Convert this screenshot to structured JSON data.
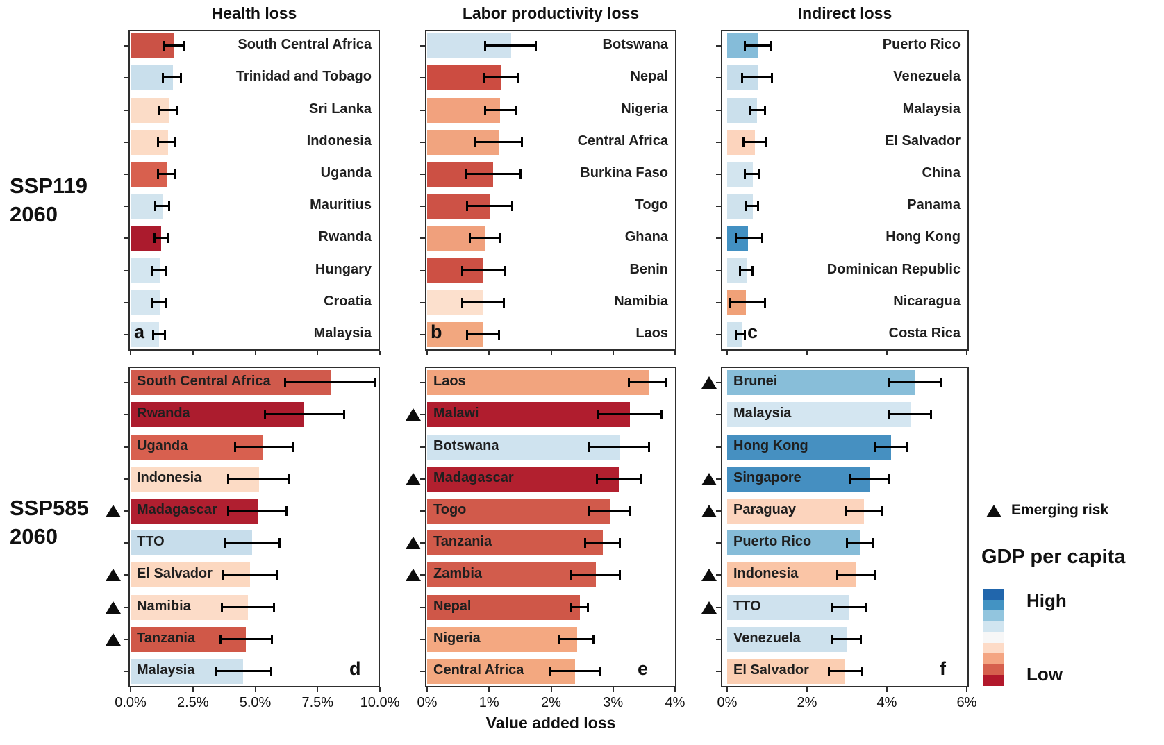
{
  "figure": {
    "column_titles": [
      "Health loss",
      "Labor productivity loss",
      "Indirect loss"
    ],
    "row_labels": [
      {
        "line1": "SSP119",
        "line2": "2060"
      },
      {
        "line1": "SSP585",
        "line2": "2060"
      }
    ],
    "x_axis_title": "Value added loss",
    "legend": {
      "emerging_risk_label": "Emerging risk",
      "gdp_title": "GDP per capita",
      "high_label": "High",
      "low_label": "Low",
      "gradient": [
        "#2166ac",
        "#4393c3",
        "#92c5de",
        "#d1e5f0",
        "#f7f7f7",
        "#fddbc7",
        "#f4a582",
        "#d6604d",
        "#b2182b"
      ]
    }
  },
  "chart_data": [
    {
      "id": "a",
      "type": "bar",
      "row": 0,
      "col": 0,
      "scenario": "SSP119 2060",
      "measure": "Health loss",
      "xlim": [
        0,
        10
      ],
      "unit": "%",
      "label_position": "right",
      "show_tick_labels": false,
      "ticks": [
        {
          "value": 0,
          "label": "0.0%"
        },
        {
          "value": 2.5,
          "label": "2.5%"
        },
        {
          "value": 5,
          "label": "5.0%"
        },
        {
          "value": 7.5,
          "label": "7.5%"
        },
        {
          "value": 10,
          "label": "10.0%"
        }
      ],
      "bars": [
        {
          "country": "South Central Africa",
          "value": 1.76,
          "lo": 1.33,
          "hi": 2.17,
          "color": "#cb5246",
          "emerging_risk": false
        },
        {
          "country": "Trinidad and Tobago",
          "value": 1.7,
          "lo": 1.28,
          "hi": 2.03,
          "color": "#c9dfec",
          "emerging_risk": false
        },
        {
          "country": "Sri Lanka",
          "value": 1.54,
          "lo": 1.15,
          "hi": 1.87,
          "color": "#fbdcc7",
          "emerging_risk": false
        },
        {
          "country": "Indonesia",
          "value": 1.5,
          "lo": 1.09,
          "hi": 1.8,
          "color": "#fcdbc5",
          "emerging_risk": false
        },
        {
          "country": "Uganda",
          "value": 1.47,
          "lo": 1.09,
          "hi": 1.79,
          "color": "#d8604e",
          "emerging_risk": false
        },
        {
          "country": "Mauritius",
          "value": 1.31,
          "lo": 0.98,
          "hi": 1.56,
          "color": "#d2e4ee",
          "emerging_risk": false
        },
        {
          "country": "Rwanda",
          "value": 1.23,
          "lo": 0.94,
          "hi": 1.51,
          "color": "#ab1b2d",
          "emerging_risk": false
        },
        {
          "country": "Hungary",
          "value": 1.18,
          "lo": 0.87,
          "hi": 1.43,
          "color": "#d4e6f0",
          "emerging_risk": false
        },
        {
          "country": "Croatia",
          "value": 1.16,
          "lo": 0.87,
          "hi": 1.45,
          "color": "#d5e6f0",
          "emerging_risk": false
        },
        {
          "country": "Malaysia",
          "value": 1.15,
          "lo": 0.89,
          "hi": 1.39,
          "color": "#d6e7f1",
          "emerging_risk": false
        }
      ]
    },
    {
      "id": "b",
      "type": "bar",
      "row": 0,
      "col": 1,
      "scenario": "SSP119 2060",
      "measure": "Labor productivity loss",
      "xlim": [
        0,
        4
      ],
      "unit": "%",
      "label_position": "right",
      "show_tick_labels": false,
      "ticks": [
        {
          "value": 0,
          "label": "0%"
        },
        {
          "value": 1,
          "label": "1%"
        },
        {
          "value": 2,
          "label": "2%"
        },
        {
          "value": 3,
          "label": "3%"
        },
        {
          "value": 4,
          "label": "4%"
        }
      ],
      "bars": [
        {
          "country": "Botswana",
          "value": 1.36,
          "lo": 0.93,
          "hi": 1.76,
          "color": "#cfe2ee",
          "emerging_risk": false
        },
        {
          "country": "Nepal",
          "value": 1.2,
          "lo": 0.92,
          "hi": 1.48,
          "color": "#cc4c41",
          "emerging_risk": false
        },
        {
          "country": "Nigeria",
          "value": 1.18,
          "lo": 0.93,
          "hi": 1.43,
          "color": "#f2a27e",
          "emerging_risk": false
        },
        {
          "country": "Central Africa",
          "value": 1.15,
          "lo": 0.77,
          "hi": 1.53,
          "color": "#f1a47f",
          "emerging_risk": false
        },
        {
          "country": "Burkina Faso",
          "value": 1.07,
          "lo": 0.62,
          "hi": 1.51,
          "color": "#cc5044",
          "emerging_risk": false
        },
        {
          "country": "Togo",
          "value": 1.02,
          "lo": 0.64,
          "hi": 1.38,
          "color": "#cd5246",
          "emerging_risk": false
        },
        {
          "country": "Ghana",
          "value": 0.93,
          "lo": 0.68,
          "hi": 1.18,
          "color": "#f0a07c",
          "emerging_risk": false
        },
        {
          "country": "Benin",
          "value": 0.9,
          "lo": 0.56,
          "hi": 1.25,
          "color": "#cd5044",
          "emerging_risk": false
        },
        {
          "country": "Namibia",
          "value": 0.9,
          "lo": 0.56,
          "hi": 1.24,
          "color": "#fce0cd",
          "emerging_risk": false
        },
        {
          "country": "Laos",
          "value": 0.9,
          "lo": 0.64,
          "hi": 1.16,
          "color": "#f2a77f",
          "emerging_risk": false
        }
      ]
    },
    {
      "id": "c",
      "type": "bar",
      "row": 0,
      "col": 2,
      "scenario": "SSP119 2060",
      "measure": "Indirect loss",
      "xlim": [
        0,
        6
      ],
      "unit": "%",
      "label_position": "right",
      "show_tick_labels": false,
      "ticks": [
        {
          "value": 0,
          "label": "0%"
        },
        {
          "value": 2,
          "label": "2%"
        },
        {
          "value": 4,
          "label": "4%"
        },
        {
          "value": 6,
          "label": "6%"
        }
      ],
      "bars": [
        {
          "country": "Puerto Rico",
          "value": 0.78,
          "lo": 0.43,
          "hi": 1.1,
          "color": "#85bcd9",
          "emerging_risk": false
        },
        {
          "country": "Venezuela",
          "value": 0.77,
          "lo": 0.37,
          "hi": 1.13,
          "color": "#c6ddeb",
          "emerging_risk": false
        },
        {
          "country": "Malaysia",
          "value": 0.75,
          "lo": 0.55,
          "hi": 0.95,
          "color": "#cbe0ec",
          "emerging_risk": false
        },
        {
          "country": "El Salvador",
          "value": 0.69,
          "lo": 0.4,
          "hi": 0.99,
          "color": "#fcd4bd",
          "emerging_risk": false
        },
        {
          "country": "China",
          "value": 0.64,
          "lo": 0.44,
          "hi": 0.81,
          "color": "#d3e5ef",
          "emerging_risk": false
        },
        {
          "country": "Panama",
          "value": 0.64,
          "lo": 0.46,
          "hi": 0.79,
          "color": "#cfe2ed",
          "emerging_risk": false
        },
        {
          "country": "Hong Kong",
          "value": 0.53,
          "lo": 0.2,
          "hi": 0.89,
          "color": "#4290c2",
          "emerging_risk": false
        },
        {
          "country": "Dominican Republic",
          "value": 0.5,
          "lo": 0.31,
          "hi": 0.64,
          "color": "#d2e4ee",
          "emerging_risk": false
        },
        {
          "country": "Nicaragua",
          "value": 0.47,
          "lo": 0.05,
          "hi": 0.95,
          "color": "#f0a178",
          "emerging_risk": false
        },
        {
          "country": "Costa Rica",
          "value": 0.37,
          "lo": 0.21,
          "hi": 0.46,
          "color": "#cfe3ee",
          "emerging_risk": false
        }
      ]
    },
    {
      "id": "d",
      "type": "bar",
      "row": 1,
      "col": 0,
      "scenario": "SSP585 2060",
      "measure": "Health loss",
      "xlim": [
        0,
        10
      ],
      "unit": "%",
      "label_position": "inside",
      "show_tick_labels": true,
      "ticks": [
        {
          "value": 0,
          "label": "0.0%"
        },
        {
          "value": 2.5,
          "label": "2.5%"
        },
        {
          "value": 5,
          "label": "5.0%"
        },
        {
          "value": 7.5,
          "label": "7.5%"
        },
        {
          "value": 10,
          "label": "10.0%"
        }
      ],
      "bars": [
        {
          "country": "South Central Africa",
          "value": 8.02,
          "lo": 6.18,
          "hi": 9.8,
          "color": "#d05a4c",
          "emerging_risk": false
        },
        {
          "country": "Rwanda",
          "value": 6.97,
          "lo": 5.37,
          "hi": 8.58,
          "color": "#ac1c2e",
          "emerging_risk": false
        },
        {
          "country": "Uganda",
          "value": 5.32,
          "lo": 4.19,
          "hi": 6.51,
          "color": "#d8604f",
          "emerging_risk": false
        },
        {
          "country": "Indonesia",
          "value": 5.16,
          "lo": 3.91,
          "hi": 6.35,
          "color": "#fcdbc5",
          "emerging_risk": false
        },
        {
          "country": "Madagascar",
          "value": 5.13,
          "lo": 3.91,
          "hi": 6.28,
          "color": "#b01f30",
          "emerging_risk": true
        },
        {
          "country": "TTO",
          "value": 4.87,
          "lo": 3.75,
          "hi": 6.0,
          "color": "#c7ddeb",
          "emerging_risk": false
        },
        {
          "country": "El Salvador",
          "value": 4.79,
          "lo": 3.68,
          "hi": 5.91,
          "color": "#fcd8c0",
          "emerging_risk": true
        },
        {
          "country": "Namibia",
          "value": 4.7,
          "lo": 3.65,
          "hi": 5.77,
          "color": "#fcdcc8",
          "emerging_risk": true
        },
        {
          "country": "Tanzania",
          "value": 4.62,
          "lo": 3.58,
          "hi": 5.67,
          "color": "#d05848",
          "emerging_risk": true
        },
        {
          "country": "Malaysia",
          "value": 4.51,
          "lo": 3.42,
          "hi": 5.65,
          "color": "#cde1ed",
          "emerging_risk": false
        }
      ]
    },
    {
      "id": "e",
      "type": "bar",
      "row": 1,
      "col": 1,
      "scenario": "SSP585 2060",
      "measure": "Labor productivity loss",
      "xlim": [
        0,
        4
      ],
      "unit": "%",
      "label_position": "inside",
      "show_tick_labels": true,
      "ticks": [
        {
          "value": 0,
          "label": "0%"
        },
        {
          "value": 1,
          "label": "1%"
        },
        {
          "value": 2,
          "label": "2%"
        },
        {
          "value": 3,
          "label": "3%"
        },
        {
          "value": 4,
          "label": "4%"
        }
      ],
      "bars": [
        {
          "country": "Laos",
          "value": 3.59,
          "lo": 3.25,
          "hi": 3.87,
          "color": "#f2a47e",
          "emerging_risk": false
        },
        {
          "country": "Malawi",
          "value": 3.27,
          "lo": 2.76,
          "hi": 3.79,
          "color": "#b01d2e",
          "emerging_risk": true
        },
        {
          "country": "Botswana",
          "value": 3.1,
          "lo": 2.61,
          "hi": 3.59,
          "color": "#cfe3ef",
          "emerging_risk": false
        },
        {
          "country": "Madagascar",
          "value": 3.09,
          "lo": 2.73,
          "hi": 3.45,
          "color": "#b2202f",
          "emerging_risk": true
        },
        {
          "country": "Togo",
          "value": 2.95,
          "lo": 2.61,
          "hi": 3.27,
          "color": "#d15a4b",
          "emerging_risk": false
        },
        {
          "country": "Tanzania",
          "value": 2.84,
          "lo": 2.54,
          "hi": 3.12,
          "color": "#d15a4a",
          "emerging_risk": true
        },
        {
          "country": "Zambia",
          "value": 2.72,
          "lo": 2.32,
          "hi": 3.12,
          "color": "#d25c4c",
          "emerging_risk": true
        },
        {
          "country": "Nepal",
          "value": 2.46,
          "lo": 2.32,
          "hi": 2.6,
          "color": "#cf5748",
          "emerging_risk": false
        },
        {
          "country": "Nigeria",
          "value": 2.42,
          "lo": 2.13,
          "hi": 2.69,
          "color": "#f4a881",
          "emerging_risk": false
        },
        {
          "country": "Central Africa",
          "value": 2.39,
          "lo": 1.98,
          "hi": 2.8,
          "color": "#f3a880",
          "emerging_risk": false
        }
      ]
    },
    {
      "id": "f",
      "type": "bar",
      "row": 1,
      "col": 2,
      "scenario": "SSP585 2060",
      "measure": "Indirect loss",
      "xlim": [
        0,
        6
      ],
      "unit": "%",
      "label_position": "inside",
      "show_tick_labels": true,
      "ticks": [
        {
          "value": 0,
          "label": "0%"
        },
        {
          "value": 2,
          "label": "2%"
        },
        {
          "value": 4,
          "label": "4%"
        },
        {
          "value": 6,
          "label": "6%"
        }
      ],
      "bars": [
        {
          "country": "Brunei",
          "value": 4.72,
          "lo": 4.05,
          "hi": 5.35,
          "color": "#88bed9",
          "emerging_risk": true
        },
        {
          "country": "Malaysia",
          "value": 4.59,
          "lo": 4.05,
          "hi": 5.11,
          "color": "#d4e6f1",
          "emerging_risk": false
        },
        {
          "country": "Hong Kong",
          "value": 4.1,
          "lo": 3.69,
          "hi": 4.5,
          "color": "#4690c1",
          "emerging_risk": false
        },
        {
          "country": "Singapore",
          "value": 3.56,
          "lo": 3.06,
          "hi": 4.05,
          "color": "#458fc1",
          "emerging_risk": true
        },
        {
          "country": "Paraguay",
          "value": 3.43,
          "lo": 2.95,
          "hi": 3.88,
          "color": "#fcd4bd",
          "emerging_risk": true
        },
        {
          "country": "Puerto Rico",
          "value": 3.34,
          "lo": 2.99,
          "hi": 3.67,
          "color": "#86bcd8",
          "emerging_risk": false
        },
        {
          "country": "Indonesia",
          "value": 3.23,
          "lo": 2.75,
          "hi": 3.7,
          "color": "#fac5a6",
          "emerging_risk": true
        },
        {
          "country": "TTO",
          "value": 3.04,
          "lo": 2.6,
          "hi": 3.47,
          "color": "#cfe2ee",
          "emerging_risk": true
        },
        {
          "country": "Venezuela",
          "value": 3.0,
          "lo": 2.63,
          "hi": 3.36,
          "color": "#cde1ed",
          "emerging_risk": false
        },
        {
          "country": "El Salvador",
          "value": 2.96,
          "lo": 2.54,
          "hi": 3.39,
          "color": "#fbceb2",
          "emerging_risk": false
        }
      ]
    }
  ]
}
